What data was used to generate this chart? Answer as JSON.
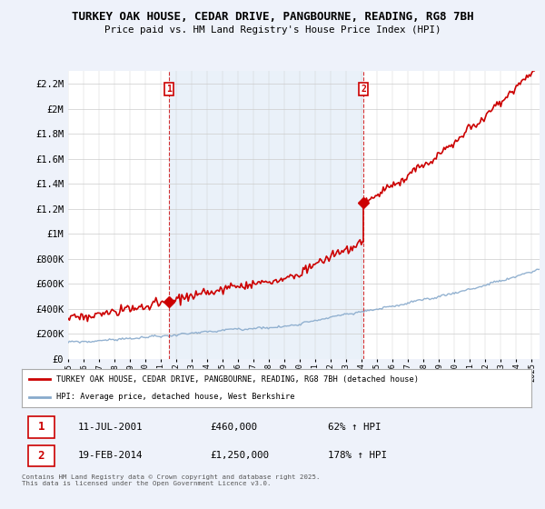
{
  "title1": "TURKEY OAK HOUSE, CEDAR DRIVE, PANGBOURNE, READING, RG8 7BH",
  "title2": "Price paid vs. HM Land Registry's House Price Index (HPI)",
  "legend_house": "TURKEY OAK HOUSE, CEDAR DRIVE, PANGBOURNE, READING, RG8 7BH (detached house)",
  "legend_hpi": "HPI: Average price, detached house, West Berkshire",
  "footer": "Contains HM Land Registry data © Crown copyright and database right 2025.\nThis data is licensed under the Open Government Licence v3.0.",
  "point1_date": "11-JUL-2001",
  "point1_price": "£460,000",
  "point1_hpi": "62% ↑ HPI",
  "point2_date": "19-FEB-2014",
  "point2_price": "£1,250,000",
  "point2_hpi": "178% ↑ HPI",
  "yticks": [
    0,
    200000,
    400000,
    600000,
    800000,
    1000000,
    1200000,
    1400000,
    1600000,
    1800000,
    2000000,
    2200000
  ],
  "house_color": "#cc0000",
  "hpi_color": "#88aacc",
  "background_color": "#eef2fa",
  "plot_bg": "#ffffff",
  "sale1_year": 2001.53,
  "sale1_price": 460000,
  "sale2_year": 2014.12,
  "sale2_price": 1250000
}
